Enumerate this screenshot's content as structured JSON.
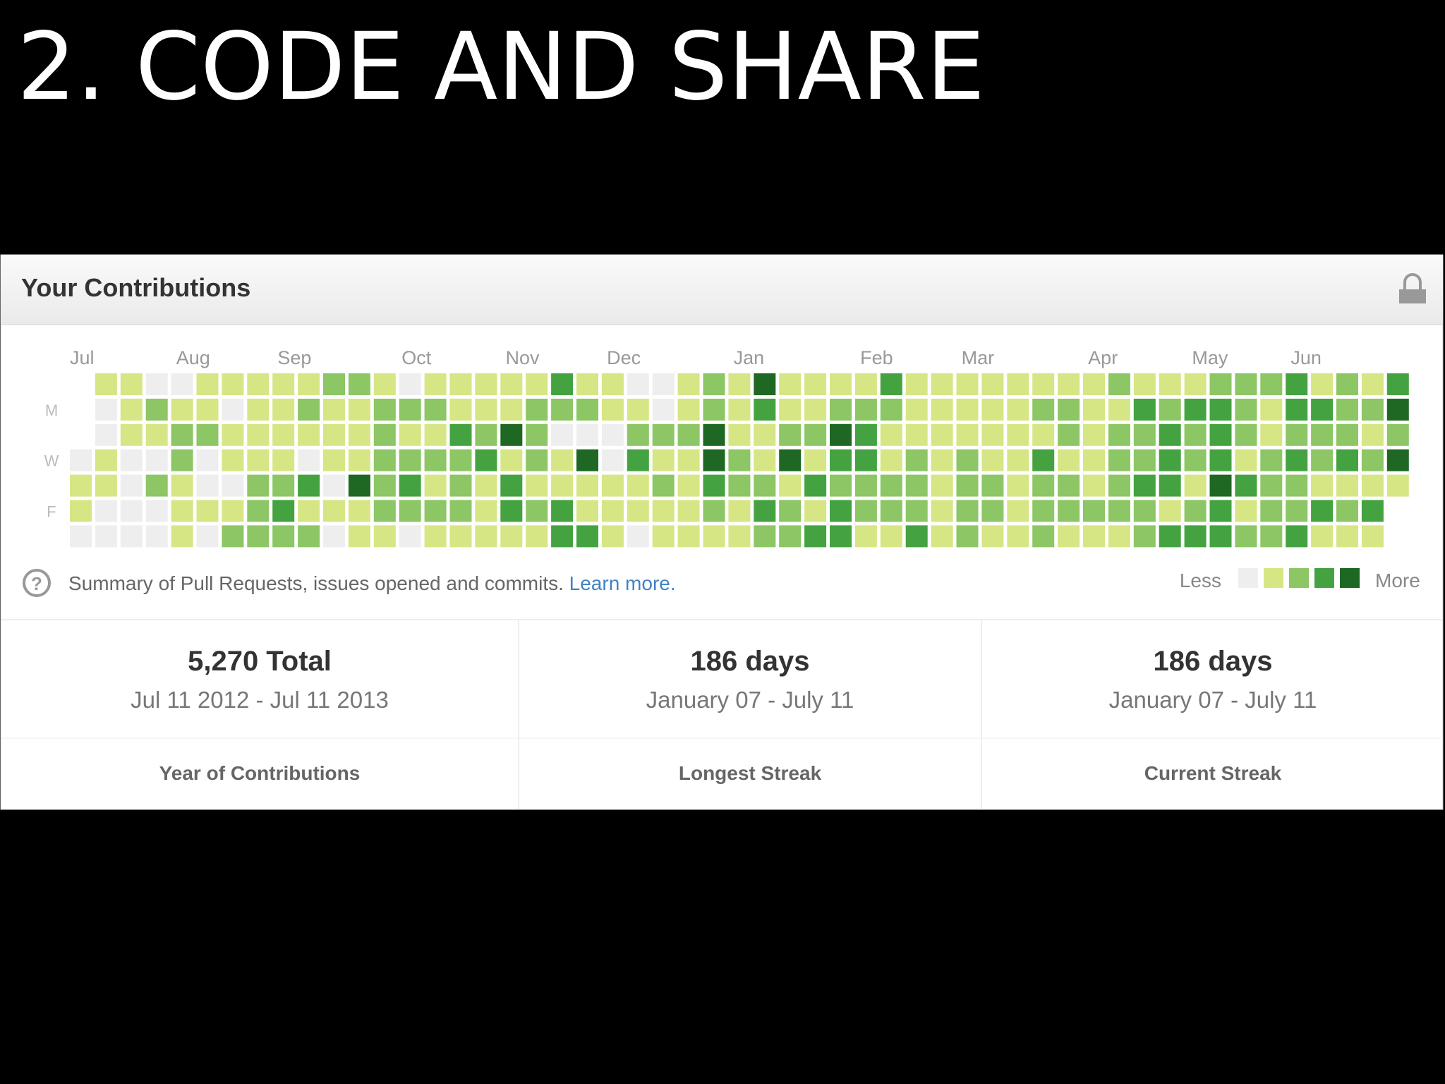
{
  "slide_title": "2. CODE AND SHARE",
  "panel": {
    "title": "Your Contributions",
    "months": [
      "Jul",
      "Aug",
      "Sep",
      "Oct",
      "Nov",
      "Dec",
      "Jan",
      "Feb",
      "Mar",
      "Apr",
      "May",
      "Jun"
    ],
    "days": [
      "M",
      "W",
      "F"
    ],
    "colors": [
      "#eeeeee",
      "#d6e685",
      "#8cc665",
      "#44a340",
      "#1e6823"
    ],
    "levels": [
      [
        null,
        1,
        1,
        0,
        0,
        1,
        1,
        1,
        1,
        1,
        2,
        2,
        1,
        0,
        1,
        1,
        1,
        1,
        1,
        3,
        1,
        1,
        0,
        0,
        1,
        2,
        1,
        4,
        1,
        1,
        1,
        1,
        3,
        1,
        1,
        1,
        1,
        1,
        1,
        1,
        1,
        2,
        1,
        1,
        1,
        2,
        2,
        2,
        3,
        1,
        2,
        1,
        3
      ],
      [
        null,
        0,
        1,
        2,
        1,
        1,
        0,
        1,
        1,
        2,
        1,
        1,
        2,
        2,
        2,
        1,
        1,
        1,
        2,
        2,
        2,
        1,
        1,
        0,
        1,
        2,
        1,
        3,
        1,
        1,
        2,
        2,
        2,
        1,
        1,
        1,
        1,
        1,
        2,
        2,
        1,
        1,
        3,
        2,
        3,
        3,
        2,
        1,
        3,
        3,
        2,
        2,
        4
      ],
      [
        null,
        0,
        1,
        1,
        2,
        2,
        1,
        1,
        1,
        1,
        1,
        1,
        2,
        1,
        1,
        3,
        2,
        4,
        2,
        0,
        0,
        0,
        2,
        2,
        2,
        4,
        1,
        1,
        2,
        2,
        4,
        3,
        1,
        1,
        1,
        1,
        1,
        1,
        1,
        2,
        1,
        2,
        2,
        3,
        2,
        3,
        2,
        1,
        2,
        2,
        2,
        1,
        2
      ],
      [
        0,
        1,
        0,
        0,
        2,
        0,
        1,
        1,
        1,
        0,
        1,
        1,
        2,
        2,
        2,
        2,
        3,
        1,
        2,
        1,
        4,
        0,
        3,
        1,
        1,
        4,
        2,
        1,
        4,
        1,
        3,
        3,
        1,
        2,
        1,
        2,
        1,
        1,
        3,
        1,
        1,
        2,
        2,
        3,
        2,
        3,
        1,
        2,
        3,
        2,
        3,
        2,
        4
      ],
      [
        1,
        1,
        0,
        2,
        1,
        0,
        0,
        2,
        2,
        3,
        0,
        4,
        2,
        3,
        1,
        2,
        1,
        3,
        1,
        1,
        1,
        1,
        1,
        2,
        1,
        3,
        2,
        2,
        1,
        3,
        2,
        2,
        2,
        2,
        1,
        2,
        2,
        1,
        2,
        2,
        1,
        2,
        3,
        3,
        1,
        4,
        3,
        2,
        2,
        1,
        1,
        1,
        1
      ],
      [
        1,
        0,
        0,
        0,
        1,
        1,
        1,
        2,
        3,
        1,
        1,
        1,
        2,
        2,
        2,
        2,
        1,
        3,
        2,
        3,
        1,
        1,
        1,
        1,
        1,
        2,
        1,
        3,
        2,
        1,
        3,
        2,
        2,
        2,
        1,
        2,
        2,
        1,
        2,
        2,
        2,
        2,
        2,
        1,
        2,
        3,
        1,
        2,
        2,
        3,
        2,
        3,
        null
      ],
      [
        0,
        0,
        0,
        0,
        1,
        0,
        2,
        2,
        2,
        2,
        0,
        1,
        1,
        0,
        1,
        1,
        1,
        1,
        1,
        3,
        3,
        1,
        0,
        1,
        1,
        1,
        1,
        2,
        2,
        3,
        3,
        1,
        1,
        3,
        1,
        2,
        1,
        1,
        2,
        1,
        1,
        1,
        2,
        3,
        3,
        3,
        2,
        2,
        3,
        1,
        1,
        1,
        null
      ]
    ],
    "summary": "Summary of Pull Requests, issues opened and commits.",
    "learn_more": "Learn more.",
    "legend_less": "Less",
    "legend_more": "More"
  },
  "stats": [
    {
      "value": "5,270 Total",
      "range": "Jul 11 2012 - Jul 11 2013",
      "label": "Year of Contributions"
    },
    {
      "value": "186 days",
      "range": "January 07 - July 11",
      "label": "Longest Streak"
    },
    {
      "value": "186 days",
      "range": "January 07 - July 11",
      "label": "Current Streak"
    }
  ]
}
